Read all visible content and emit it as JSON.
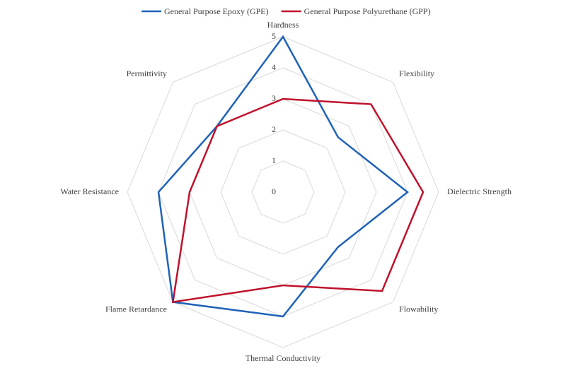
{
  "chart_data": {
    "type": "radar",
    "categories": [
      "Hardness",
      "Flexibility",
      "Dielectric Strength",
      "Flowability",
      "Thermal Conductivity",
      "Flame Retardance",
      "Water Resistance",
      "Permittivity"
    ],
    "series": [
      {
        "name": "General Purpose Epoxy (GPE)",
        "color": "#1f62b8",
        "values": [
          5,
          2.5,
          4,
          2.5,
          4,
          5,
          4,
          3
        ]
      },
      {
        "name": "General Purpose Polyurethane (GPP)",
        "color": "#c0112b",
        "values": [
          3,
          4,
          4.5,
          4.5,
          3,
          5,
          3,
          3
        ]
      }
    ],
    "ylim": [
      0,
      5
    ],
    "yticks": [
      0,
      1,
      2,
      3,
      4,
      5
    ],
    "grid": true,
    "legend": "top"
  }
}
